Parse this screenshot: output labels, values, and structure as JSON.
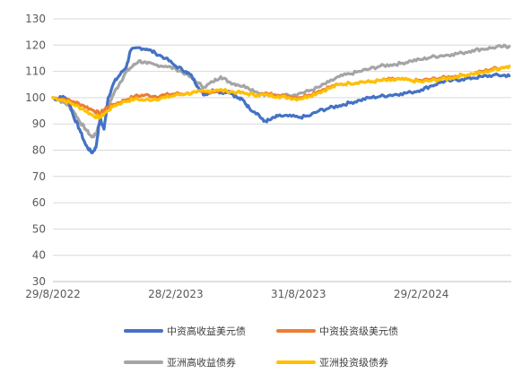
{
  "chart_data": {
    "type": "line",
    "title": "",
    "xlabel": "",
    "ylabel": "",
    "ylim": [
      30,
      130
    ],
    "yticks": [
      30,
      40,
      50,
      60,
      70,
      80,
      90,
      100,
      110,
      120,
      130
    ],
    "xticks": [
      "29/8/2022",
      "28/2/2023",
      "31/8/2023",
      "29/2/2024"
    ],
    "grid": "horizontal",
    "legend_position": "bottom",
    "colors": {
      "s1": "#4472c4",
      "s2": "#ed7d31",
      "s3": "#a5a5a5",
      "s4": "#ffc000"
    },
    "series": [
      {
        "name": "中资高收益美元债",
        "color": "#4472c4",
        "points": [
          [
            0,
            100
          ],
          [
            0.2,
            99.5
          ],
          [
            0.5,
            100.5
          ],
          [
            0.8,
            98
          ],
          [
            1,
            93
          ],
          [
            1.3,
            88
          ],
          [
            1.6,
            82
          ],
          [
            1.9,
            79
          ],
          [
            2.1,
            81
          ],
          [
            2.3,
            92
          ],
          [
            2.5,
            88
          ],
          [
            2.7,
            100
          ],
          [
            3,
            106
          ],
          [
            3.3,
            109
          ],
          [
            3.6,
            112
          ],
          [
            3.8,
            118
          ],
          [
            4.2,
            119
          ],
          [
            4.6,
            118.5
          ],
          [
            5,
            117
          ],
          [
            5.5,
            115
          ],
          [
            6,
            112
          ],
          [
            6.5,
            110
          ],
          [
            6.8,
            108
          ],
          [
            7.1,
            104
          ],
          [
            7.4,
            101
          ],
          [
            7.8,
            103
          ],
          [
            8.2,
            102
          ],
          [
            8.6,
            102.5
          ],
          [
            9,
            100
          ],
          [
            9.3,
            99
          ],
          [
            9.6,
            96
          ],
          [
            10,
            94
          ],
          [
            10.3,
            91
          ],
          [
            10.6,
            91.5
          ],
          [
            11,
            93
          ],
          [
            11.5,
            93
          ],
          [
            12,
            92.5
          ],
          [
            12.5,
            93
          ],
          [
            13,
            95
          ],
          [
            13.5,
            96
          ],
          [
            14,
            97
          ],
          [
            14.5,
            98
          ],
          [
            15,
            99
          ],
          [
            15.5,
            100
          ],
          [
            16,
            100.5
          ],
          [
            16.5,
            101
          ],
          [
            17,
            101.5
          ],
          [
            17.5,
            102
          ],
          [
            18,
            103
          ],
          [
            18.5,
            104.5
          ],
          [
            19,
            106
          ],
          [
            19.5,
            106.5
          ],
          [
            20,
            107
          ],
          [
            20.5,
            107.5
          ],
          [
            21,
            108
          ],
          [
            21.5,
            108.5
          ],
          [
            22,
            108.5
          ],
          [
            22.3,
            108.3
          ]
        ]
      },
      {
        "name": "中资投资级美元债",
        "color": "#ed7d31",
        "points": [
          [
            0,
            100
          ],
          [
            0.5,
            99.5
          ],
          [
            1,
            98.5
          ],
          [
            1.5,
            97
          ],
          [
            2,
            95
          ],
          [
            2.3,
            94
          ],
          [
            2.6,
            96
          ],
          [
            3,
            97.5
          ],
          [
            3.5,
            99
          ],
          [
            4,
            100.5
          ],
          [
            4.5,
            101
          ],
          [
            5,
            100.5
          ],
          [
            5.5,
            101
          ],
          [
            6,
            101.5
          ],
          [
            6.5,
            101.5
          ],
          [
            7,
            102
          ],
          [
            7.5,
            102
          ],
          [
            8,
            102.5
          ],
          [
            8.5,
            102.5
          ],
          [
            9,
            102
          ],
          [
            9.5,
            101.5
          ],
          [
            10,
            101
          ],
          [
            10.5,
            101.5
          ],
          [
            11,
            101
          ],
          [
            11.5,
            100.5
          ],
          [
            12,
            100
          ],
          [
            12.5,
            101
          ],
          [
            13,
            102.5
          ],
          [
            13.5,
            104
          ],
          [
            14,
            105
          ],
          [
            14.5,
            105.5
          ],
          [
            15,
            106
          ],
          [
            15.5,
            106
          ],
          [
            16,
            106.5
          ],
          [
            16.5,
            107
          ],
          [
            17,
            107
          ],
          [
            17.5,
            106.5
          ],
          [
            18,
            106.5
          ],
          [
            18.5,
            107
          ],
          [
            19,
            107.5
          ],
          [
            19.5,
            108
          ],
          [
            20,
            108.5
          ],
          [
            20.5,
            109
          ],
          [
            21,
            110
          ],
          [
            21.5,
            111
          ],
          [
            22,
            111.5
          ],
          [
            22.3,
            112
          ]
        ]
      },
      {
        "name": "亚洲高收益债券",
        "color": "#a5a5a5",
        "points": [
          [
            0,
            100
          ],
          [
            0.3,
            99
          ],
          [
            0.6,
            98
          ],
          [
            1,
            95
          ],
          [
            1.3,
            91
          ],
          [
            1.6,
            88
          ],
          [
            1.9,
            85
          ],
          [
            2.1,
            86
          ],
          [
            2.4,
            94
          ],
          [
            2.7,
            97
          ],
          [
            3,
            102
          ],
          [
            3.3,
            106
          ],
          [
            3.6,
            110
          ],
          [
            3.9,
            112
          ],
          [
            4.2,
            114
          ],
          [
            4.6,
            113
          ],
          [
            5,
            112.5
          ],
          [
            5.5,
            112
          ],
          [
            6,
            111
          ],
          [
            6.5,
            109
          ],
          [
            7,
            106
          ],
          [
            7.4,
            104
          ],
          [
            7.8,
            106
          ],
          [
            8.2,
            108
          ],
          [
            8.6,
            106
          ],
          [
            9,
            105
          ],
          [
            9.5,
            104
          ],
          [
            10,
            102
          ],
          [
            10.5,
            101
          ],
          [
            11,
            100.5
          ],
          [
            11.5,
            101
          ],
          [
            12,
            101.5
          ],
          [
            12.5,
            102.5
          ],
          [
            13,
            104
          ],
          [
            13.5,
            106
          ],
          [
            14,
            108
          ],
          [
            14.5,
            109
          ],
          [
            15,
            110
          ],
          [
            15.5,
            111
          ],
          [
            16,
            112
          ],
          [
            16.5,
            112.5
          ],
          [
            17,
            113
          ],
          [
            17.5,
            114
          ],
          [
            18,
            114.5
          ],
          [
            18.5,
            115.5
          ],
          [
            19,
            116
          ],
          [
            19.5,
            116.5
          ],
          [
            20,
            117
          ],
          [
            20.5,
            118
          ],
          [
            21,
            118.5
          ],
          [
            21.5,
            119
          ],
          [
            22,
            119.5
          ],
          [
            22.3,
            119.5
          ]
        ]
      },
      {
        "name": "亚洲投资级债券",
        "color": "#ffc000",
        "points": [
          [
            0,
            100
          ],
          [
            0.5,
            99
          ],
          [
            1,
            97.5
          ],
          [
            1.5,
            95.5
          ],
          [
            2,
            93
          ],
          [
            2.3,
            92.5
          ],
          [
            2.6,
            94.5
          ],
          [
            3,
            97
          ],
          [
            3.5,
            98.5
          ],
          [
            4,
            99.5
          ],
          [
            4.5,
            99
          ],
          [
            5,
            99.5
          ],
          [
            5.5,
            100
          ],
          [
            6,
            101
          ],
          [
            6.5,
            101.5
          ],
          [
            7,
            102
          ],
          [
            7.5,
            102.5
          ],
          [
            8,
            103
          ],
          [
            8.5,
            102.5
          ],
          [
            9,
            102
          ],
          [
            9.5,
            101.5
          ],
          [
            10,
            101
          ],
          [
            10.5,
            101
          ],
          [
            11,
            100.5
          ],
          [
            11.5,
            100
          ],
          [
            12,
            99.5
          ],
          [
            12.5,
            100.5
          ],
          [
            13,
            102
          ],
          [
            13.5,
            103.5
          ],
          [
            14,
            105
          ],
          [
            14.5,
            105.5
          ],
          [
            15,
            106
          ],
          [
            15.5,
            106
          ],
          [
            16,
            106.5
          ],
          [
            16.5,
            106.5
          ],
          [
            17,
            107
          ],
          [
            17.5,
            106.5
          ],
          [
            18,
            106
          ],
          [
            18.5,
            106.5
          ],
          [
            19,
            107
          ],
          [
            19.5,
            107.5
          ],
          [
            20,
            108.5
          ],
          [
            20.5,
            109
          ],
          [
            21,
            109.5
          ],
          [
            21.5,
            110.5
          ],
          [
            22,
            111.5
          ],
          [
            22.3,
            112
          ]
        ]
      }
    ],
    "x_range": [
      0,
      22.4
    ],
    "xtick_positions": [
      0,
      6,
      12,
      18
    ]
  }
}
